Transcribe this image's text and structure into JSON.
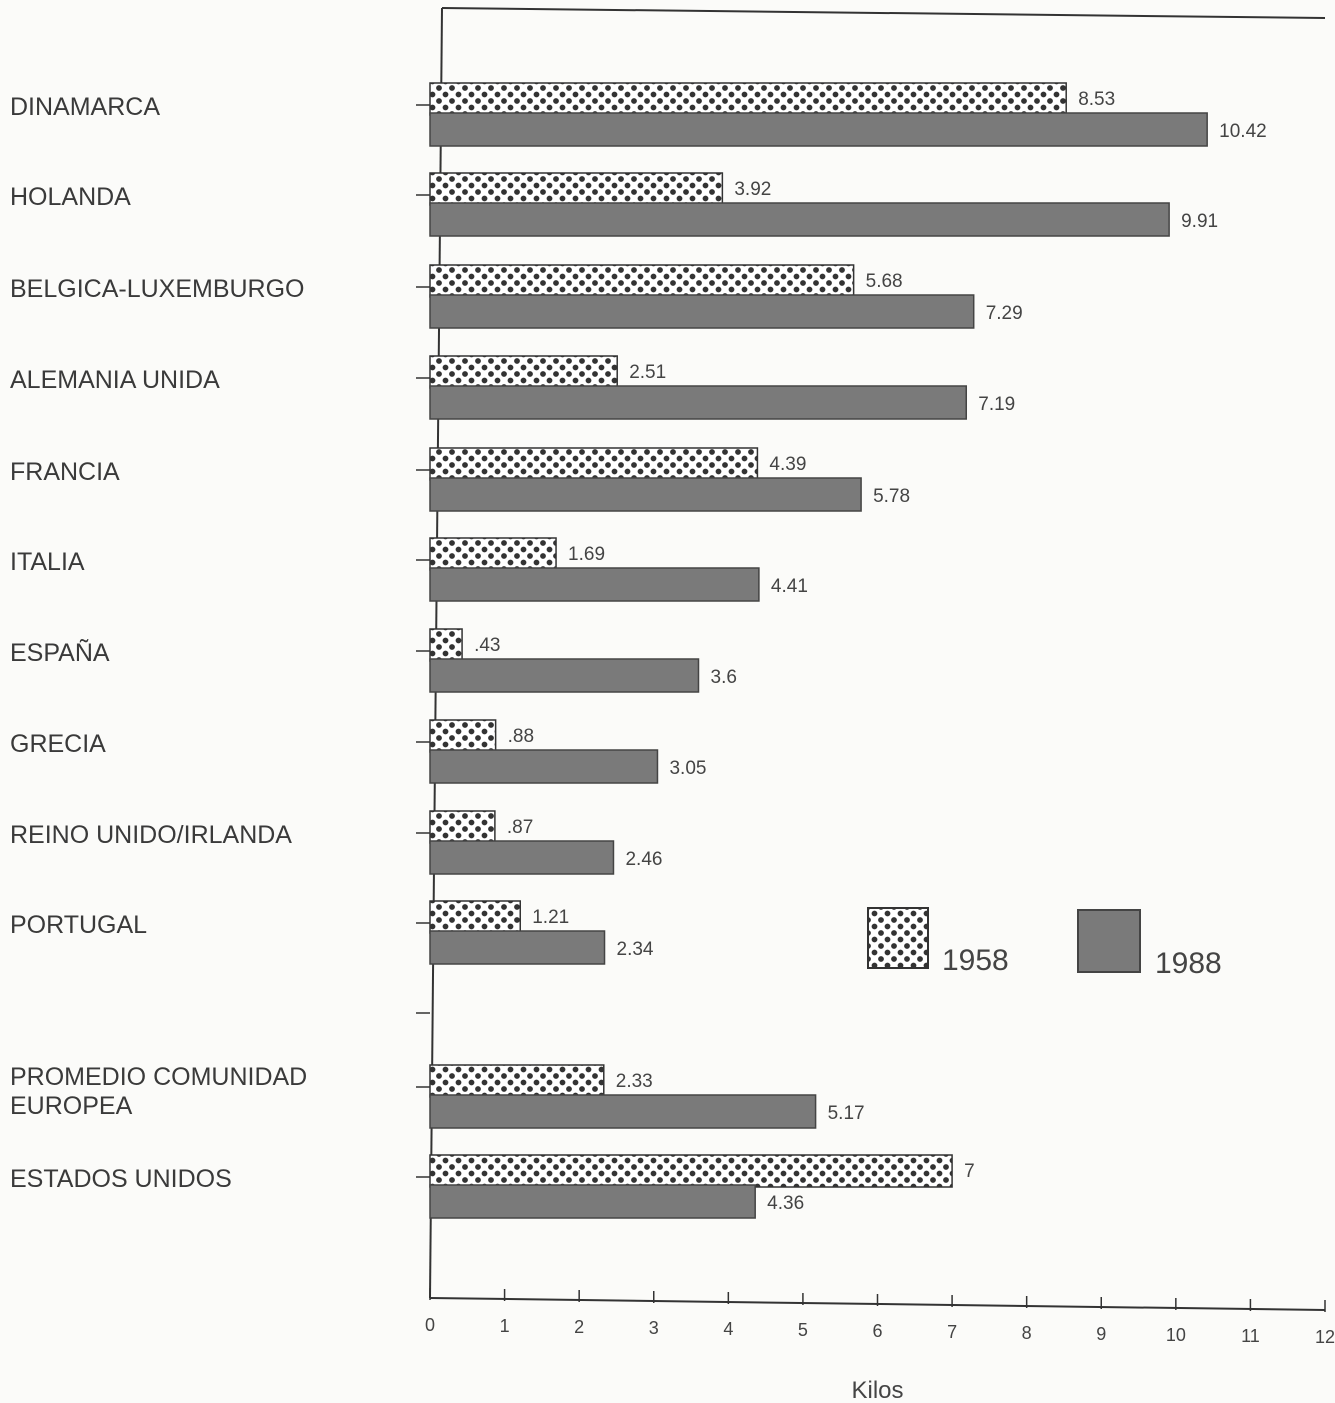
{
  "chart_data": {
    "type": "bar",
    "orientation": "horizontal",
    "categories": [
      "DINAMARCA",
      "HOLANDA",
      "BELGICA-LUXEMBURGO",
      "ALEMANIA UNIDA",
      "FRANCIA",
      "ITALIA",
      "ESPAÑA",
      "GRECIA",
      "REINO UNIDO/IRLANDA",
      "PORTUGAL",
      "PROMEDIO COMUNIDAD EUROPEA",
      "ESTADOS UNIDOS"
    ],
    "category_label_lines": [
      [
        "DINAMARCA"
      ],
      [
        "HOLANDA"
      ],
      [
        "BELGICA-LUXEMBURGO"
      ],
      [
        "ALEMANIA UNIDA"
      ],
      [
        "FRANCIA"
      ],
      [
        "ITALIA"
      ],
      [
        "ESPAÑA"
      ],
      [
        "GRECIA"
      ],
      [
        "REINO UNIDO/IRLANDA"
      ],
      [
        "PORTUGAL"
      ],
      [
        "PROMEDIO COMUNIDAD",
        "EUROPEA"
      ],
      [
        "ESTADOS UNIDOS"
      ]
    ],
    "series": [
      {
        "name": "1958",
        "values": [
          8.53,
          3.92,
          5.68,
          2.51,
          4.39,
          1.69,
          0.43,
          0.88,
          0.87,
          1.21,
          2.33,
          7
        ],
        "labels": [
          "8.53",
          "3.92",
          "5.68",
          "2.51",
          "4.39",
          "1.69",
          ".43",
          ".88",
          ".87",
          "1.21",
          "2.33",
          "7"
        ],
        "pattern": "dotted",
        "color": "#ffffff"
      },
      {
        "name": "1988",
        "values": [
          10.42,
          9.91,
          7.29,
          7.19,
          5.78,
          4.41,
          3.6,
          3.05,
          2.46,
          2.34,
          5.17,
          4.36
        ],
        "labels": [
          "10.42",
          "9.91",
          "7.29",
          "7.19",
          "5.78",
          "4.41",
          "3.6",
          "3.05",
          "2.46",
          "2.34",
          "5.17",
          "4.36"
        ],
        "pattern": "solid-grey",
        "color": "#7a7a7a"
      }
    ],
    "xlabel": "Kilos",
    "xlim": [
      0,
      12
    ],
    "xticks": [
      "0",
      "1",
      "2",
      "3",
      "4",
      "5",
      "6",
      "7",
      "8",
      "9",
      "10",
      "11",
      "12"
    ],
    "grid": false,
    "legend_position": "right",
    "title": ""
  }
}
